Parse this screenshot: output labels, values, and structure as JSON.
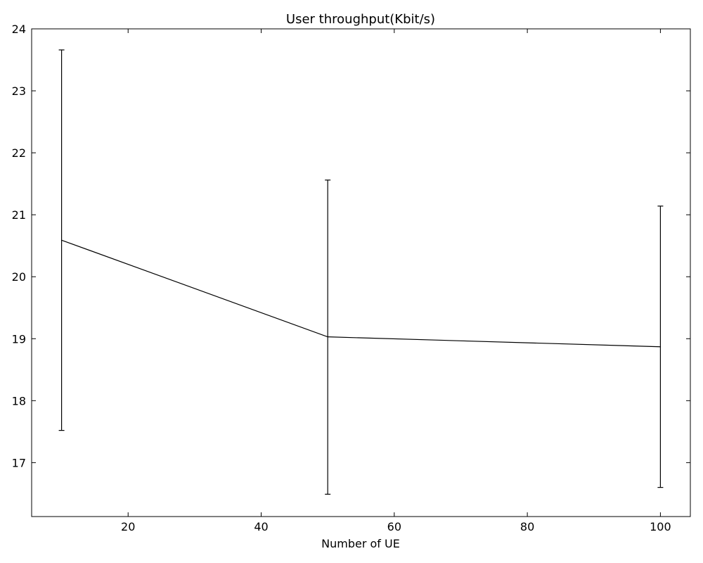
{
  "chart_data": {
    "type": "line",
    "title": "User throughput(Kbit/s)",
    "xlabel": "Number of UE",
    "ylabel": "",
    "xlim": [
      5.5,
      104.5
    ],
    "ylim": [
      16.13,
      24.0
    ],
    "xticks": [
      20,
      40,
      60,
      80,
      100
    ],
    "yticks": [
      17,
      18,
      19,
      20,
      21,
      22,
      23,
      24
    ],
    "xtick_labels": [
      "20",
      "40",
      "60",
      "80",
      "100"
    ],
    "ytick_labels": [
      "17",
      "18",
      "19",
      "20",
      "21",
      "22",
      "23",
      "24"
    ],
    "grid": false,
    "legend": "none",
    "series": [
      {
        "x": [
          10,
          50,
          100
        ],
        "y": [
          20.59,
          19.03,
          18.87
        ],
        "yerr_lower": [
          17.52,
          16.49,
          16.6
        ],
        "yerr_upper": [
          23.66,
          21.56,
          21.14
        ],
        "color": "#000000"
      }
    ]
  }
}
